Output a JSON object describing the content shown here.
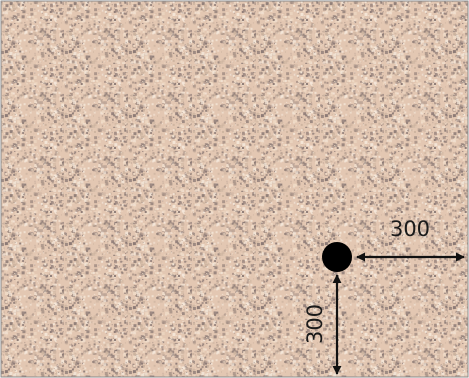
{
  "diagram": {
    "surface": {
      "texture": "speckled-granite",
      "base_color": "#e3c7b2",
      "speckle_colors": [
        "#f4e6d8",
        "#cdb4a0",
        "#a89287",
        "#8d7b76",
        "#efd9c4"
      ],
      "border_color": "#8a8a8a"
    },
    "point_color": "#000000",
    "arrow_color": "#111111",
    "horizontal_dimension": {
      "label": "300"
    },
    "vertical_dimension": {
      "label": "300"
    }
  }
}
